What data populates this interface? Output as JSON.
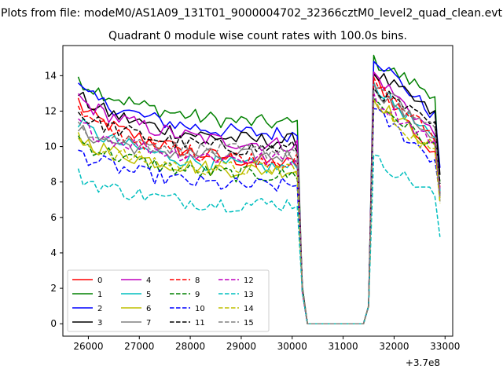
{
  "figure": {
    "suptitle": "Plots from file: modeM0/AS1A09_131T01_9000004702_32366cztM0_level2_quad_clean.evt",
    "title": "Quadrant 0 module wise count rates with 100.0s bins.",
    "x_offset_label": "+3.7e8"
  },
  "chart_data": {
    "type": "line",
    "title": "Quadrant 0 module wise count rates with 100.0s bins.",
    "xlabel": "",
    "ylabel": "",
    "x_offset": 370000000,
    "xlim": [
      25500,
      33150
    ],
    "ylim": [
      -0.7,
      15.7
    ],
    "xticks": [
      26000,
      27000,
      28000,
      29000,
      30000,
      31000,
      32000,
      33000
    ],
    "xtick_labels": [
      "26000",
      "27000",
      "28000",
      "29000",
      "30000",
      "31000",
      "32000",
      "33000"
    ],
    "yticks": [
      0,
      2,
      4,
      6,
      8,
      10,
      12,
      14
    ],
    "ytick_labels": [
      "0",
      "2",
      "4",
      "6",
      "8",
      "10",
      "12",
      "14"
    ],
    "grid": false,
    "legend": {
      "location": "lower-left",
      "columns": 4
    },
    "gap": {
      "start": 30200,
      "end": 31500,
      "value": 0
    },
    "x_first_segment": [
      25800,
      30100
    ],
    "x_second_segment": [
      31600,
      32900
    ],
    "series": [
      {
        "name": "0",
        "color": "#ff0000",
        "dash": "solid",
        "start1": 12.6,
        "end1": 9.0,
        "peak2": 13.9,
        "end2": 9.0,
        "last": 7.7
      },
      {
        "name": "1",
        "color": "#008000",
        "dash": "solid",
        "start1": 14.0,
        "end1": 11.3,
        "peak2": 14.8,
        "end2": 12.8,
        "last": 7.3
      },
      {
        "name": "2",
        "color": "#0000ff",
        "dash": "solid",
        "start1": 13.4,
        "end1": 10.7,
        "peak2": 15.1,
        "end2": 11.4,
        "last": 8.8
      },
      {
        "name": "3",
        "color": "#000000",
        "dash": "solid",
        "start1": 13.0,
        "end1": 10.3,
        "peak2": 14.2,
        "end2": 11.6,
        "last": 8.4
      },
      {
        "name": "4",
        "color": "#bf00bf",
        "dash": "solid",
        "start1": 12.9,
        "end1": 10.1,
        "peak2": 14.1,
        "end2": 10.4,
        "last": 7.6
      },
      {
        "name": "5",
        "color": "#00bfbf",
        "dash": "solid",
        "start1": 11.5,
        "end1": 8.8,
        "peak2": 13.5,
        "end2": 10.0,
        "last": 7.5
      },
      {
        "name": "6",
        "color": "#bfbf00",
        "dash": "solid",
        "start1": 10.6,
        "end1": 8.7,
        "peak2": 12.7,
        "end2": 9.6,
        "last": 7.1
      },
      {
        "name": "7",
        "color": "#808080",
        "dash": "solid",
        "start1": 11.0,
        "end1": 9.5,
        "peak2": 13.3,
        "end2": 10.3,
        "last": 6.9
      },
      {
        "name": "8",
        "color": "#ff0000",
        "dash": "dashed",
        "start1": 12.1,
        "end1": 9.2,
        "peak2": 13.6,
        "end2": 10.3,
        "last": 7.2
      },
      {
        "name": "9",
        "color": "#008000",
        "dash": "dashed",
        "start1": 10.5,
        "end1": 8.4,
        "peak2": 12.6,
        "end2": 9.7,
        "last": 8.0
      },
      {
        "name": "10",
        "color": "#0000ff",
        "dash": "dashed",
        "start1": 9.8,
        "end1": 7.8,
        "peak2": 12.0,
        "end2": 9.0,
        "last": 7.2
      },
      {
        "name": "11",
        "color": "#000000",
        "dash": "dashed",
        "start1": 12.0,
        "end1": 9.9,
        "peak2": 13.3,
        "end2": 10.9,
        "last": 7.9
      },
      {
        "name": "12",
        "color": "#bf00bf",
        "dash": "dashed",
        "start1": 11.4,
        "end1": 9.3,
        "peak2": 12.7,
        "end2": 10.0,
        "last": 7.4
      },
      {
        "name": "13",
        "color": "#00bfbf",
        "dash": "dashed",
        "start1": 8.4,
        "end1": 6.8,
        "peak2": 9.3,
        "end2": 7.1,
        "last": 4.9
      },
      {
        "name": "14",
        "color": "#bfbf00",
        "dash": "dashed",
        "start1": 10.4,
        "end1": 8.8,
        "peak2": 12.4,
        "end2": 9.3,
        "last": 6.8
      },
      {
        "name": "15",
        "color": "#808080",
        "dash": "dashed",
        "start1": 11.3,
        "end1": 9.8,
        "peak2": 13.5,
        "end2": 10.6,
        "last": 7.2
      }
    ]
  }
}
